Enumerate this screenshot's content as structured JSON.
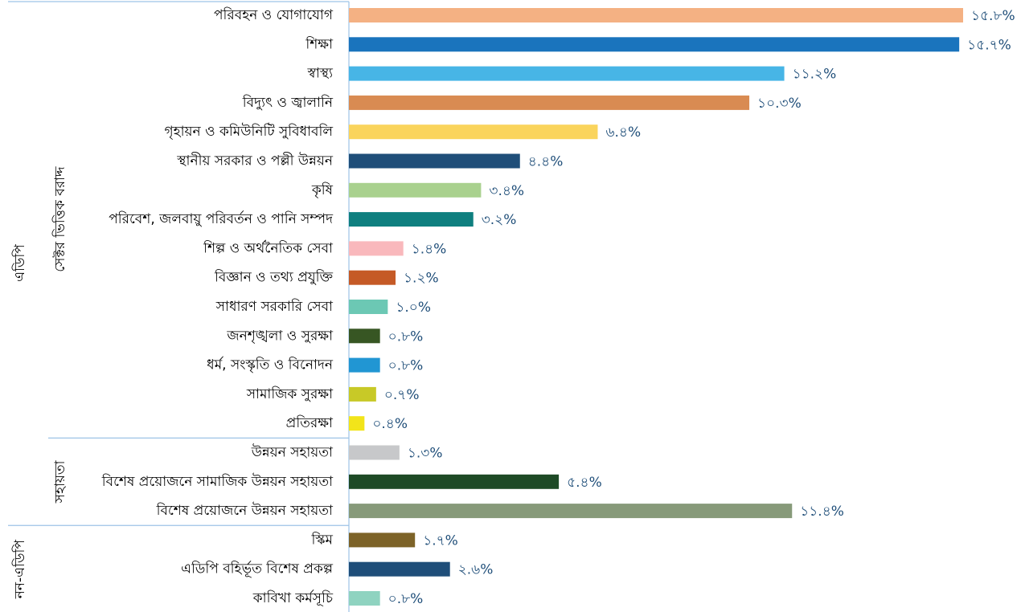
{
  "chart_data": {
    "type": "bar",
    "orientation": "horizontal",
    "groups": [
      {
        "name": "এডিপি",
        "subgroups": [
          {
            "name": "সেক্টর ভিত্তিক বরাদ্দ",
            "categories": [
              "পরিবহন ও যোগাযোগ",
              "শিক্ষা",
              "স্বাস্থ্য",
              "বিদ্যুৎ ও জ্বালানি",
              "গৃহায়ন ও কমিউনিটি সুবিধাবলি",
              "স্থানীয় সরকার ও পল্লী উন্নয়ন",
              "কৃষি",
              "পরিবেশ, জলবায়ু পরিবর্তন ও পানি সম্পদ",
              "শিল্প ও অর্থনৈতিক সেবা",
              "বিজ্ঞান ও তথ্য প্রযুক্তি",
              "সাধারণ সরকারি সেবা",
              "জনশৃঙ্খলা ও সুরক্ষা",
              "ধর্ম, সংস্কৃতি ও বিনোদন",
              "সামাজিক সুরক্ষা",
              "প্রতিরক্ষা"
            ],
            "values": [
              15.8,
              15.7,
              11.2,
              10.3,
              6.4,
              4.4,
              3.4,
              3.2,
              1.4,
              1.2,
              1.0,
              0.8,
              0.8,
              0.7,
              0.4
            ],
            "value_labels": [
              "১৫.৮%",
              "১৫.৭%",
              "১১.২%",
              "১০.৩%",
              "৬.৪%",
              "৪.৪%",
              "৩.৪%",
              "৩.২%",
              "১.৪%",
              "১.২%",
              "১.০%",
              "০.৮%",
              "০.৮%",
              "০.৭%",
              "০.৪%"
            ],
            "colors": [
              "#f4b183",
              "#1a74bd",
              "#47b5e6",
              "#d98b52",
              "#fad45c",
              "#1f4e79",
              "#a9d18e",
              "#0f7f7f",
              "#f9b8bc",
              "#c55a26",
              "#6cc8b4",
              "#375623",
              "#2196d3",
              "#c8c927",
              "#f2e41a"
            ]
          },
          {
            "name": "সহায়তা",
            "categories": [
              "উন্নয়ন সহায়তা",
              "বিশেষ প্রয়োজনে সামাজিক উন্নয়ন সহায়তা",
              "বিশেষ প্রয়োজনে উন্নয়ন সহায়তা"
            ],
            "values": [
              1.3,
              5.4,
              11.4
            ],
            "value_labels": [
              "১.৩%",
              "৫.৪%",
              "১১.৪%"
            ],
            "colors": [
              "#c7c8ca",
              "#1e4a26",
              "#879a7a"
            ]
          }
        ]
      },
      {
        "name": "নন-এডিপি",
        "categories": [
          "স্কিম",
          "এডিপি বহির্ভূত বিশেষ প্রকল্প",
          "কাবিখা কর্মসূচি"
        ],
        "values": [
          1.7,
          2.6,
          0.8
        ],
        "value_labels": [
          "১.৭%",
          "২.৬%",
          "০.৮%"
        ],
        "colors": [
          "#7d6328",
          "#1f4e79",
          "#8fd3c0"
        ]
      }
    ]
  }
}
